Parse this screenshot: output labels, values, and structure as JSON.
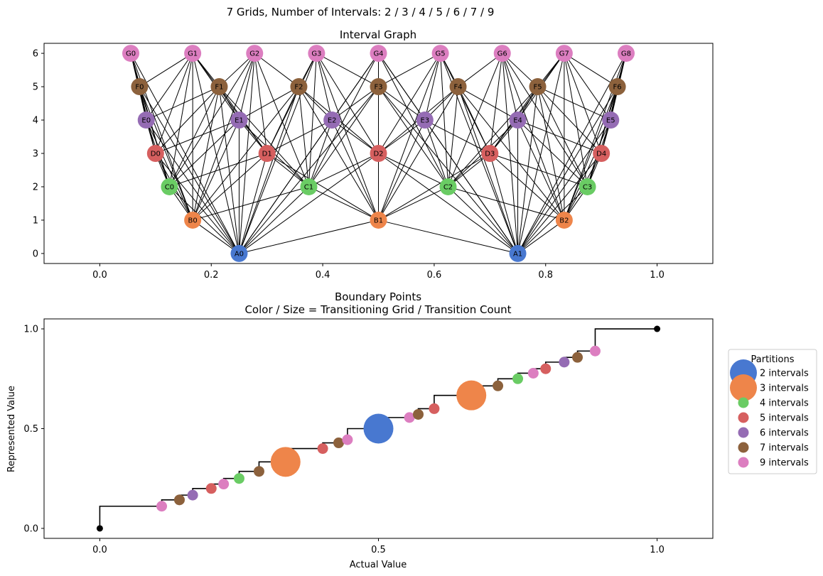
{
  "figure": {
    "suptitle": "7 Grids, Number of Intervals: 2 / 3 / 4 / 5 / 6 / 7 / 9"
  },
  "chart_data": [
    {
      "type": "scatter",
      "title": "Interval Graph",
      "xlabel": "",
      "ylabel": "",
      "xlim": [
        -0.1,
        1.1
      ],
      "ylim": [
        -0.3,
        6.3
      ],
      "xticks": [
        "0.0",
        "0.2",
        "0.4",
        "0.6",
        "0.8",
        "1.0"
      ],
      "xtick_values": [
        0,
        0.2,
        0.4,
        0.6,
        0.8,
        1.0
      ],
      "yticks": [
        "0",
        "1",
        "2",
        "3",
        "4",
        "5",
        "6"
      ],
      "ytick_values": [
        0,
        1,
        2,
        3,
        4,
        5,
        6
      ],
      "grid": false,
      "nodes": [
        {
          "label": "A0",
          "x": 0.25,
          "y": 0,
          "color": "#4878d0"
        },
        {
          "label": "A1",
          "x": 0.75,
          "y": 0,
          "color": "#4878d0"
        },
        {
          "label": "B0",
          "x": 0.1667,
          "y": 1,
          "color": "#ee854a"
        },
        {
          "label": "B1",
          "x": 0.5,
          "y": 1,
          "color": "#ee854a"
        },
        {
          "label": "B2",
          "x": 0.8333,
          "y": 1,
          "color": "#ee854a"
        },
        {
          "label": "C0",
          "x": 0.125,
          "y": 2,
          "color": "#6acc64"
        },
        {
          "label": "C1",
          "x": 0.375,
          "y": 2,
          "color": "#6acc64"
        },
        {
          "label": "C2",
          "x": 0.625,
          "y": 2,
          "color": "#6acc64"
        },
        {
          "label": "C3",
          "x": 0.875,
          "y": 2,
          "color": "#6acc64"
        },
        {
          "label": "D0",
          "x": 0.1,
          "y": 3,
          "color": "#d65f5f"
        },
        {
          "label": "D1",
          "x": 0.3,
          "y": 3,
          "color": "#d65f5f"
        },
        {
          "label": "D2",
          "x": 0.5,
          "y": 3,
          "color": "#d65f5f"
        },
        {
          "label": "D3",
          "x": 0.7,
          "y": 3,
          "color": "#d65f5f"
        },
        {
          "label": "D4",
          "x": 0.9,
          "y": 3,
          "color": "#d65f5f"
        },
        {
          "label": "E0",
          "x": 0.0833,
          "y": 4,
          "color": "#956cb4"
        },
        {
          "label": "E1",
          "x": 0.25,
          "y": 4,
          "color": "#956cb4"
        },
        {
          "label": "E2",
          "x": 0.4167,
          "y": 4,
          "color": "#956cb4"
        },
        {
          "label": "E3",
          "x": 0.5833,
          "y": 4,
          "color": "#956cb4"
        },
        {
          "label": "E4",
          "x": 0.75,
          "y": 4,
          "color": "#956cb4"
        },
        {
          "label": "E5",
          "x": 0.9167,
          "y": 4,
          "color": "#956cb4"
        },
        {
          "label": "F0",
          "x": 0.0714,
          "y": 5,
          "color": "#8c613c"
        },
        {
          "label": "F1",
          "x": 0.2143,
          "y": 5,
          "color": "#8c613c"
        },
        {
          "label": "F2",
          "x": 0.3571,
          "y": 5,
          "color": "#8c613c"
        },
        {
          "label": "F3",
          "x": 0.5,
          "y": 5,
          "color": "#8c613c"
        },
        {
          "label": "F4",
          "x": 0.6429,
          "y": 5,
          "color": "#8c613c"
        },
        {
          "label": "F5",
          "x": 0.7857,
          "y": 5,
          "color": "#8c613c"
        },
        {
          "label": "F6",
          "x": 0.9286,
          "y": 5,
          "color": "#8c613c"
        },
        {
          "label": "G0",
          "x": 0.0556,
          "y": 6,
          "color": "#dc7ec0"
        },
        {
          "label": "G1",
          "x": 0.1667,
          "y": 6,
          "color": "#dc7ec0"
        },
        {
          "label": "G2",
          "x": 0.2778,
          "y": 6,
          "color": "#dc7ec0"
        },
        {
          "label": "G3",
          "x": 0.3889,
          "y": 6,
          "color": "#dc7ec0"
        },
        {
          "label": "G4",
          "x": 0.5,
          "y": 6,
          "color": "#dc7ec0"
        },
        {
          "label": "G5",
          "x": 0.6111,
          "y": 6,
          "color": "#dc7ec0"
        },
        {
          "label": "G6",
          "x": 0.7222,
          "y": 6,
          "color": "#dc7ec0"
        },
        {
          "label": "G7",
          "x": 0.8333,
          "y": 6,
          "color": "#dc7ec0"
        },
        {
          "label": "G8",
          "x": 0.9444,
          "y": 6,
          "color": "#dc7ec0"
        }
      ],
      "edges": "every pair of nodes from different rows whose intervals overlap"
    },
    {
      "type": "scatter",
      "title": "Boundary Points",
      "subtitle": "Color / Size = Transitioning Grid / Transition Count",
      "xlabel": "Actual Value",
      "ylabel": "Represented Value",
      "xlim": [
        -0.1,
        1.1
      ],
      "ylim": [
        -0.05,
        1.05
      ],
      "xticks": [
        "0.0",
        "0.5",
        "1.0"
      ],
      "xtick_values": [
        0,
        0.5,
        1.0
      ],
      "yticks": [
        "0.0",
        "0.5",
        "1.0"
      ],
      "ytick_values": [
        0,
        0.5,
        1.0
      ],
      "grid": false,
      "legend": {
        "title": "Partitions",
        "placement": "outside-right",
        "entries": [
          {
            "label": "2 intervals",
            "color": "#4878d0",
            "size": "large"
          },
          {
            "label": "3 intervals",
            "color": "#ee854a",
            "size": "large"
          },
          {
            "label": "4 intervals",
            "color": "#6acc64",
            "size": "small"
          },
          {
            "label": "5 intervals",
            "color": "#d65f5f",
            "size": "small"
          },
          {
            "label": "6 intervals",
            "color": "#956cb4",
            "size": "small"
          },
          {
            "label": "7 intervals",
            "color": "#8c613c",
            "size": "small"
          },
          {
            "label": "9 intervals",
            "color": "#dc7ec0",
            "size": "small"
          }
        ]
      },
      "endpoints": [
        {
          "x": 0.0,
          "y": 0.0
        },
        {
          "x": 1.0,
          "y": 1.0
        }
      ],
      "points": [
        {
          "x": 0.1111,
          "y": 0.1111,
          "grid": "9 intervals",
          "color": "#dc7ec0",
          "count": 1
        },
        {
          "x": 0.1429,
          "y": 0.1429,
          "grid": "7 intervals",
          "color": "#8c613c",
          "count": 1
        },
        {
          "x": 0.1667,
          "y": 0.1667,
          "grid": "6 intervals",
          "color": "#956cb4",
          "count": 1
        },
        {
          "x": 0.2,
          "y": 0.2,
          "grid": "5 intervals",
          "color": "#d65f5f",
          "count": 1
        },
        {
          "x": 0.2222,
          "y": 0.2222,
          "grid": "9 intervals",
          "color": "#dc7ec0",
          "count": 1
        },
        {
          "x": 0.25,
          "y": 0.25,
          "grid": "4 intervals",
          "color": "#6acc64",
          "count": 1
        },
        {
          "x": 0.2857,
          "y": 0.2857,
          "grid": "7 intervals",
          "color": "#8c613c",
          "count": 1
        },
        {
          "x": 0.3333,
          "y": 0.3333,
          "grid": "3 intervals",
          "color": "#ee854a",
          "count": 4
        },
        {
          "x": 0.4,
          "y": 0.4,
          "grid": "5 intervals",
          "color": "#d65f5f",
          "count": 1
        },
        {
          "x": 0.4286,
          "y": 0.4286,
          "grid": "7 intervals",
          "color": "#8c613c",
          "count": 1
        },
        {
          "x": 0.4444,
          "y": 0.4444,
          "grid": "9 intervals",
          "color": "#dc7ec0",
          "count": 1
        },
        {
          "x": 0.5,
          "y": 0.5,
          "grid": "2 intervals",
          "color": "#4878d0",
          "count": 4
        },
        {
          "x": 0.5556,
          "y": 0.5556,
          "grid": "9 intervals",
          "color": "#dc7ec0",
          "count": 1
        },
        {
          "x": 0.5714,
          "y": 0.5714,
          "grid": "7 intervals",
          "color": "#8c613c",
          "count": 1
        },
        {
          "x": 0.6,
          "y": 0.6,
          "grid": "5 intervals",
          "color": "#d65f5f",
          "count": 1
        },
        {
          "x": 0.6667,
          "y": 0.6667,
          "grid": "3 intervals",
          "color": "#ee854a",
          "count": 4
        },
        {
          "x": 0.7143,
          "y": 0.7143,
          "grid": "7 intervals",
          "color": "#8c613c",
          "count": 1
        },
        {
          "x": 0.75,
          "y": 0.75,
          "grid": "4 intervals",
          "color": "#6acc64",
          "count": 1
        },
        {
          "x": 0.7778,
          "y": 0.7778,
          "grid": "9 intervals",
          "color": "#dc7ec0",
          "count": 1
        },
        {
          "x": 0.8,
          "y": 0.8,
          "grid": "5 intervals",
          "color": "#d65f5f",
          "count": 1
        },
        {
          "x": 0.8333,
          "y": 0.8333,
          "grid": "6 intervals",
          "color": "#956cb4",
          "count": 1
        },
        {
          "x": 0.8571,
          "y": 0.8571,
          "grid": "7 intervals",
          "color": "#8c613c",
          "count": 1
        },
        {
          "x": 0.8889,
          "y": 0.8889,
          "grid": "9 intervals",
          "color": "#dc7ec0",
          "count": 1
        }
      ]
    }
  ]
}
